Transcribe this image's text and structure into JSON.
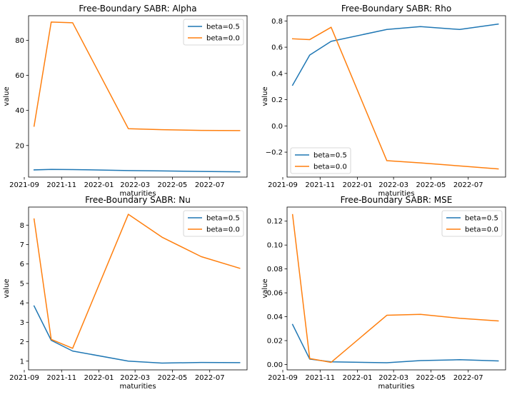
{
  "colors": {
    "beta_0_5": "#1f77b4",
    "beta_0_0": "#ff7f0e"
  },
  "chart_data": [
    {
      "type": "line",
      "title": "Free-Boundary SABR: Alpha",
      "xlabel": "maturities",
      "ylabel": "value",
      "x": [
        "2021-09-17",
        "2021-10-15",
        "2021-11-19",
        "2022-02-18",
        "2022-04-14",
        "2022-06-17",
        "2022-08-19"
      ],
      "xlim": [
        "2021-09-08",
        "2022-08-31"
      ],
      "xticks": [
        "2021-09",
        "2021-11",
        "2022-01",
        "2022-03",
        "2022-05",
        "2022-07"
      ],
      "ylim": [
        2,
        94
      ],
      "yticks": [
        20,
        40,
        60,
        80
      ],
      "legend_position": "upper right",
      "series": [
        {
          "name": "beta=0.5",
          "color": "#1f77b4",
          "values": [
            6.1,
            6.4,
            6.3,
            5.7,
            5.5,
            5.2,
            5.0
          ]
        },
        {
          "name": "beta=0.0",
          "color": "#ff7f0e",
          "values": [
            31.0,
            90.4,
            90.0,
            29.6,
            29.0,
            28.6,
            28.5
          ]
        }
      ]
    },
    {
      "type": "line",
      "title": "Free-Boundary SABR: Rho",
      "xlabel": "maturities",
      "ylabel": "value",
      "x": [
        "2021-09-17",
        "2021-10-15",
        "2021-11-19",
        "2022-02-18",
        "2022-04-14",
        "2022-06-17",
        "2022-08-19"
      ],
      "xlim": [
        "2021-09-08",
        "2022-08-31"
      ],
      "xticks": [
        "2021-09",
        "2021-11",
        "2022-01",
        "2022-03",
        "2022-05",
        "2022-07"
      ],
      "ylim": [
        -0.39,
        0.84
      ],
      "yticks": [
        -0.2,
        0.0,
        0.2,
        0.4,
        0.6,
        0.8
      ],
      "ytick_labels": [
        "−0.2",
        "0.0",
        "0.2",
        "0.4",
        "0.6",
        "0.8"
      ],
      "legend_position": "lower left",
      "series": [
        {
          "name": "beta=0.5",
          "color": "#1f77b4",
          "values": [
            0.31,
            0.54,
            0.645,
            0.735,
            0.757,
            0.735,
            0.776
          ]
        },
        {
          "name": "beta=0.0",
          "color": "#ff7f0e",
          "values": [
            0.664,
            0.658,
            0.752,
            -0.265,
            -0.282,
            -0.305,
            -0.328
          ]
        }
      ]
    },
    {
      "type": "line",
      "title": "Free-Boundary SABR: Nu",
      "xlabel": "maturities",
      "ylabel": "value",
      "x": [
        "2021-09-17",
        "2021-10-15",
        "2021-11-19",
        "2022-02-18",
        "2022-04-14",
        "2022-06-17",
        "2022-08-19"
      ],
      "xlim": [
        "2021-09-08",
        "2022-08-31"
      ],
      "xticks": [
        "2021-09",
        "2021-11",
        "2022-01",
        "2022-03",
        "2022-05",
        "2022-07"
      ],
      "ylim": [
        0.55,
        8.93
      ],
      "yticks": [
        1,
        2,
        3,
        4,
        5,
        6,
        7,
        8
      ],
      "legend_position": "upper right",
      "series": [
        {
          "name": "beta=0.5",
          "color": "#1f77b4",
          "values": [
            3.84,
            2.07,
            1.52,
            1.0,
            0.9,
            0.93,
            0.92
          ]
        },
        {
          "name": "beta=0.0",
          "color": "#ff7f0e",
          "values": [
            8.32,
            2.12,
            1.66,
            8.56,
            7.38,
            6.38,
            5.78
          ]
        }
      ]
    },
    {
      "type": "line",
      "title": "Free-Boundary SABR: MSE",
      "xlabel": "maturities",
      "ylabel": "value",
      "x": [
        "2021-09-17",
        "2021-10-15",
        "2021-11-19",
        "2022-02-18",
        "2022-04-14",
        "2022-06-17",
        "2022-08-19"
      ],
      "xlim": [
        "2021-09-08",
        "2022-08-31"
      ],
      "xticks": [
        "2021-09",
        "2021-11",
        "2022-01",
        "2022-03",
        "2022-05",
        "2022-07"
      ],
      "ylim": [
        -0.0045,
        0.1318
      ],
      "yticks": [
        0.0,
        0.02,
        0.04,
        0.06,
        0.08,
        0.1,
        0.12
      ],
      "ytick_labels": [
        "0.00",
        "0.02",
        "0.04",
        "0.06",
        "0.08",
        "0.10",
        "0.12"
      ],
      "legend_position": "upper right",
      "series": [
        {
          "name": "beta=0.5",
          "color": "#1f77b4",
          "values": [
            0.0335,
            0.0045,
            0.0022,
            0.0015,
            0.0033,
            0.004,
            0.003
          ]
        },
        {
          "name": "beta=0.0",
          "color": "#ff7f0e",
          "values": [
            0.1255,
            0.005,
            0.0018,
            0.0412,
            0.042,
            0.0387,
            0.0365
          ]
        }
      ]
    }
  ]
}
